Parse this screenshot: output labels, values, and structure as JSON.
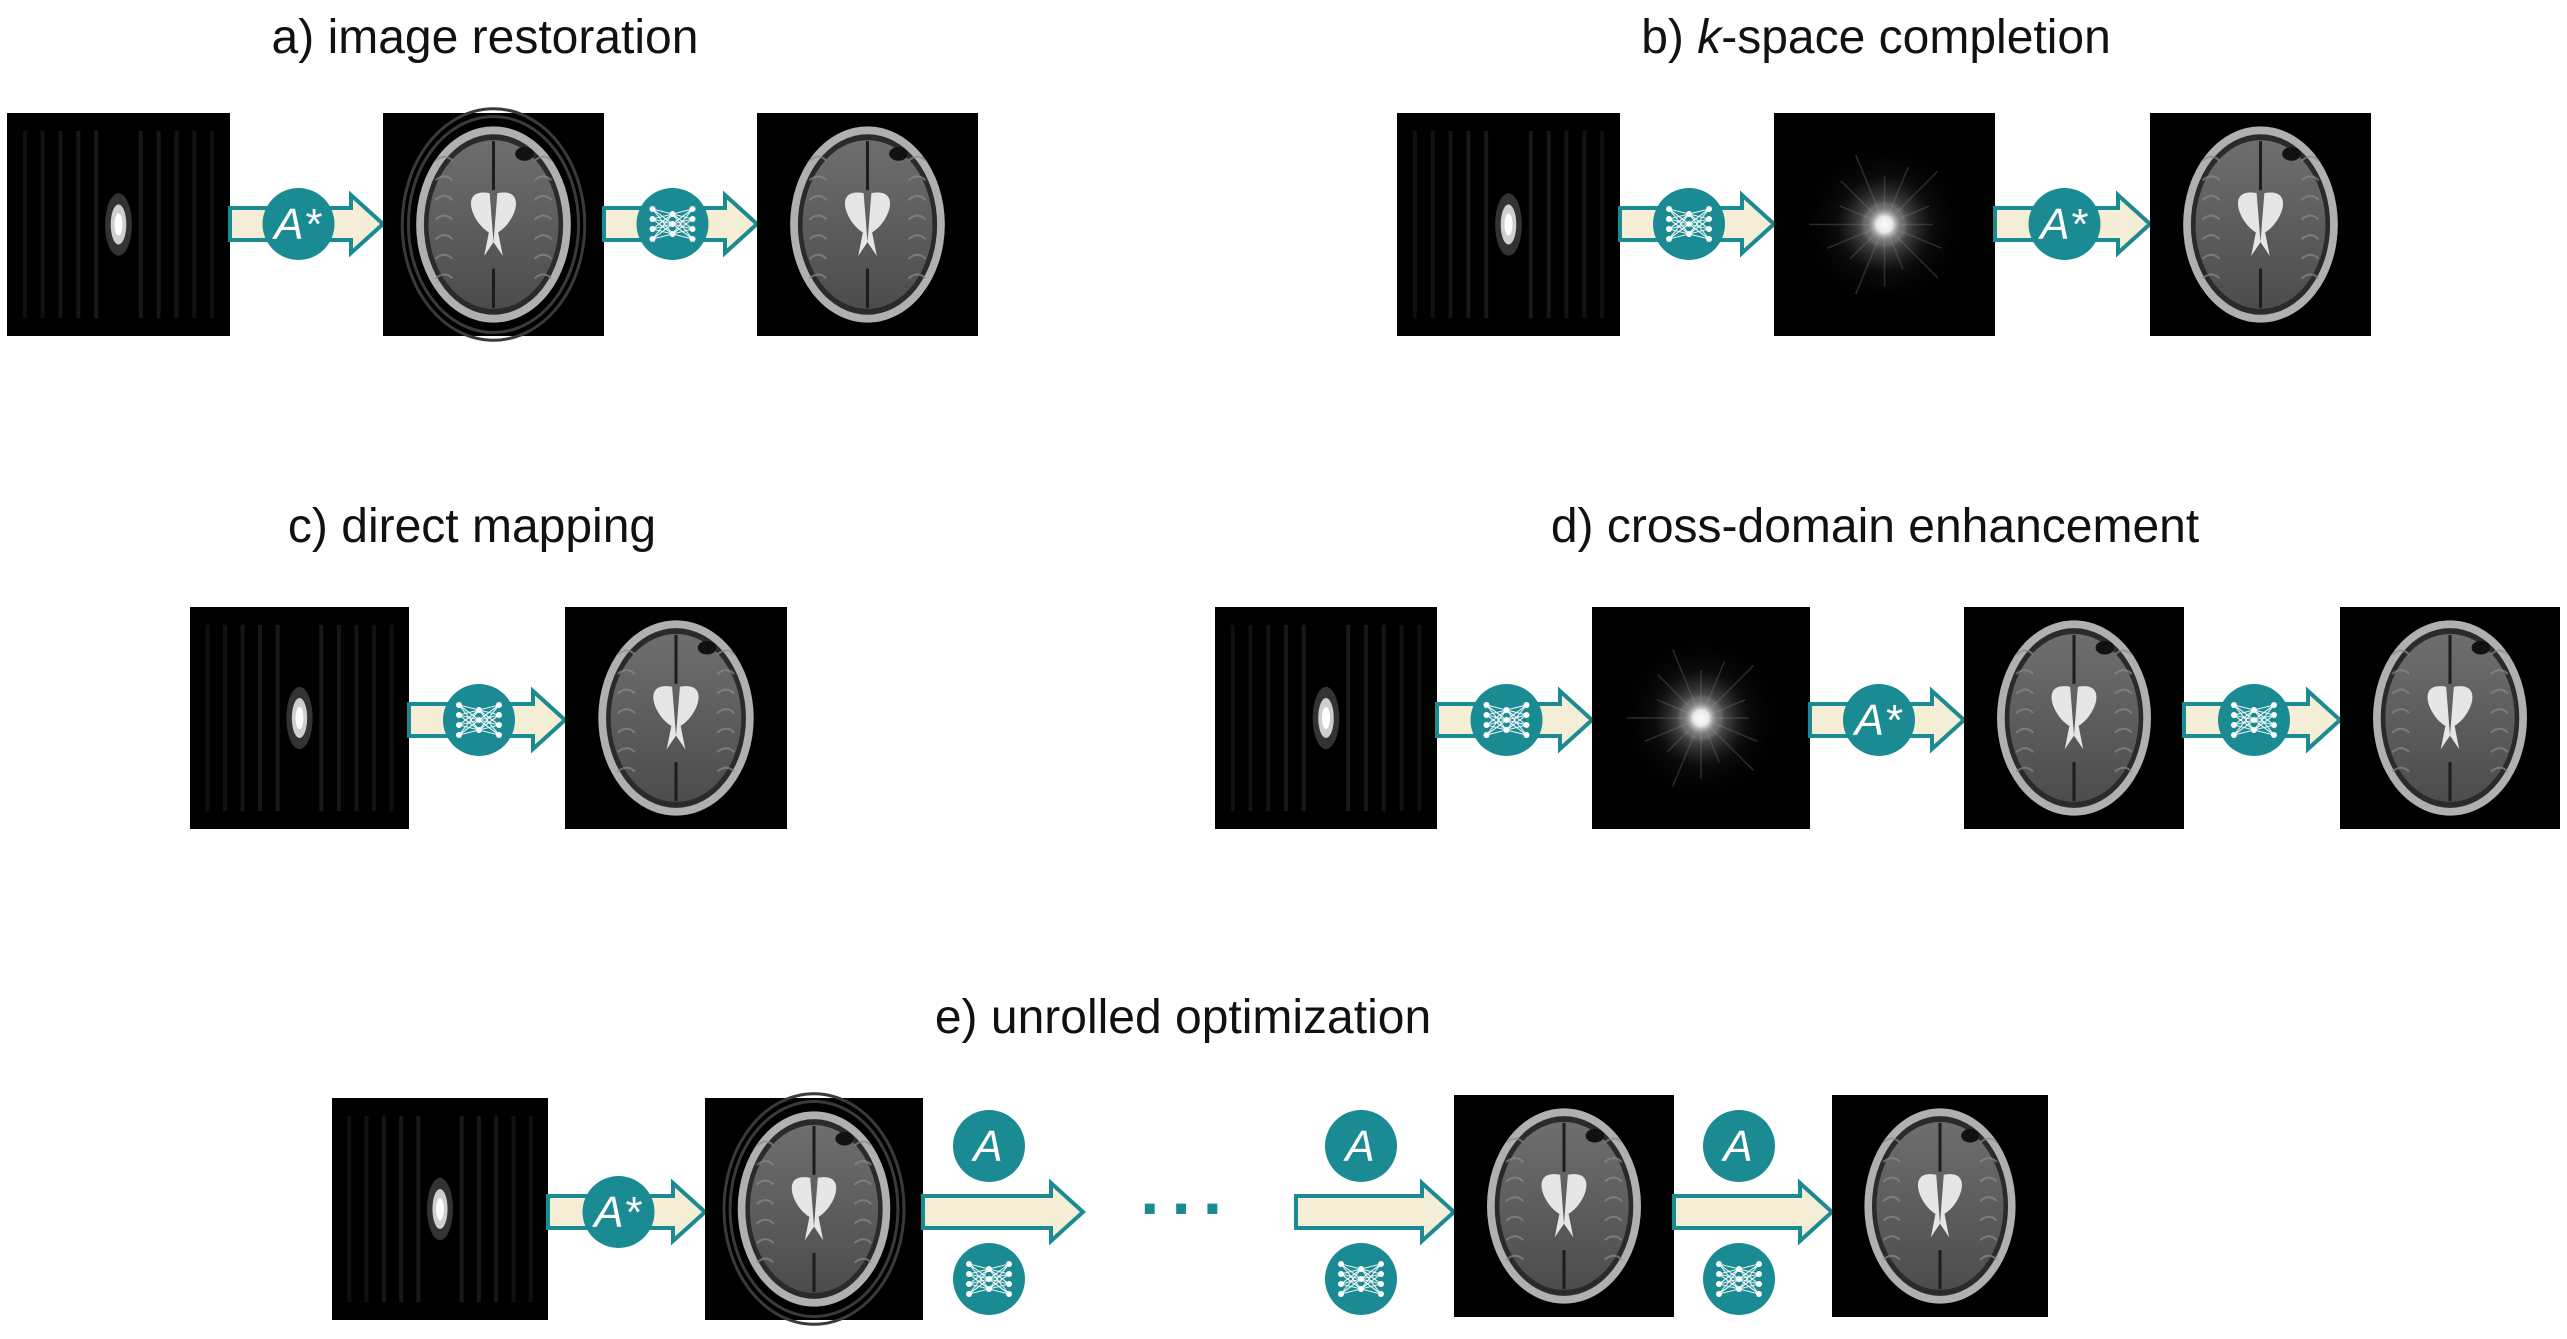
{
  "panels": {
    "a": {
      "label": "a)",
      "title": "image restoration"
    },
    "b": {
      "label": "b)",
      "title_prefix": "k",
      "title": "-space completion"
    },
    "c": {
      "label": "c)",
      "title": "direct mapping"
    },
    "d": {
      "label": "d)",
      "title": "cross-domain enhancement"
    },
    "e": {
      "label": "e)",
      "title": "unrolled optimization"
    }
  },
  "operators": {
    "adjoint": "A*",
    "forward": "A",
    "network_icon": "neural-network-icon"
  },
  "ellipsis": "···",
  "colors": {
    "operator_circle": "#1a8a93",
    "operator_text": "#ffffff",
    "arrow_fill": "#f5eed6",
    "arrow_outline": "#1a8a93",
    "image_background": "#000000"
  }
}
